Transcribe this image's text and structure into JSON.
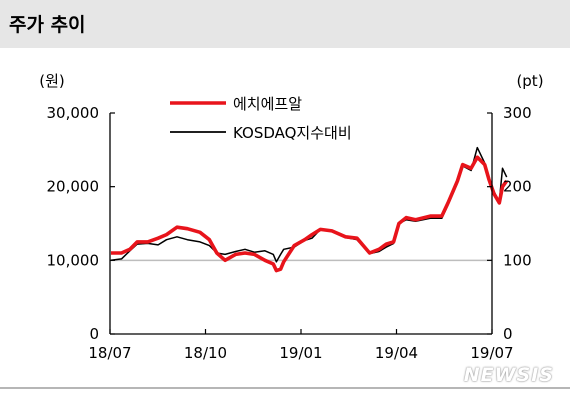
{
  "header": {
    "title": "주가 추이"
  },
  "watermark": "NEWSIS",
  "chart_data": {
    "type": "line",
    "title": "주가 추이",
    "left_axis": {
      "unit_label": "(원)",
      "ylim": [
        0,
        30000
      ],
      "ticks": [
        "0",
        "10,000",
        "20,000",
        "30,000"
      ],
      "tick_values": [
        0,
        10000,
        20000,
        30000
      ]
    },
    "right_axis": {
      "unit_label": "(pt)",
      "ylim": [
        0,
        300
      ],
      "ticks": [
        "0",
        "100",
        "200",
        "300"
      ],
      "tick_values": [
        0,
        100,
        200,
        300
      ]
    },
    "x_ticks": [
      "18/07",
      "18/10",
      "19/01",
      "19/04",
      "19/07"
    ],
    "x_range": [
      "2018-07",
      "2019-07"
    ],
    "reference_line": {
      "axis": "left",
      "value": 10000,
      "color": "#bdbdbd"
    },
    "legend_position": "top-center",
    "series": [
      {
        "name": "에치에프알",
        "axis": "left",
        "color": "#e8141b",
        "points": [
          [
            "2018-07-02",
            11000
          ],
          [
            "2018-07-12",
            11000
          ],
          [
            "2018-07-20",
            11500
          ],
          [
            "2018-07-27",
            12500
          ],
          [
            "2018-08-06",
            12500
          ],
          [
            "2018-08-16",
            13000
          ],
          [
            "2018-08-24",
            13500
          ],
          [
            "2018-09-03",
            14500
          ],
          [
            "2018-09-13",
            14300
          ],
          [
            "2018-09-25",
            13800
          ],
          [
            "2018-10-04",
            12800
          ],
          [
            "2018-10-11",
            11000
          ],
          [
            "2018-10-19",
            10000
          ],
          [
            "2018-10-29",
            10800
          ],
          [
            "2018-11-07",
            11000
          ],
          [
            "2018-11-16",
            10800
          ],
          [
            "2018-11-26",
            10000
          ],
          [
            "2018-12-04",
            9500
          ],
          [
            "2018-12-07",
            8600
          ],
          [
            "2018-12-11",
            8800
          ],
          [
            "2018-12-14",
            9800
          ],
          [
            "2018-12-24",
            12000
          ],
          [
            "2019-01-03",
            12800
          ],
          [
            "2019-01-10",
            13500
          ],
          [
            "2019-01-18",
            14200
          ],
          [
            "2019-01-29",
            14000
          ],
          [
            "2019-02-11",
            13200
          ],
          [
            "2019-02-22",
            13000
          ],
          [
            "2019-03-06",
            11000
          ],
          [
            "2019-03-15",
            11500
          ],
          [
            "2019-03-22",
            12200
          ],
          [
            "2019-03-29",
            12500
          ],
          [
            "2019-04-03",
            15000
          ],
          [
            "2019-04-10",
            15800
          ],
          [
            "2019-04-19",
            15500
          ],
          [
            "2019-05-03",
            16000
          ],
          [
            "2019-05-14",
            16000
          ],
          [
            "2019-05-20",
            17800
          ],
          [
            "2019-05-29",
            20800
          ],
          [
            "2019-06-03",
            23000
          ],
          [
            "2019-06-11",
            22500
          ],
          [
            "2019-06-17",
            24000
          ],
          [
            "2019-06-24",
            23000
          ],
          [
            "2019-06-28",
            21000
          ],
          [
            "2019-07-03",
            19000
          ],
          [
            "2019-07-08",
            17800
          ],
          [
            "2019-07-11",
            20000
          ],
          [
            "2019-07-15",
            20800
          ]
        ]
      },
      {
        "name": "KOSDAQ지수대비",
        "axis": "right",
        "color": "#000000",
        "points": [
          [
            "2018-07-02",
            100
          ],
          [
            "2018-07-12",
            102
          ],
          [
            "2018-07-20",
            113
          ],
          [
            "2018-07-27",
            122
          ],
          [
            "2018-08-06",
            123
          ],
          [
            "2018-08-16",
            121
          ],
          [
            "2018-08-24",
            128
          ],
          [
            "2018-09-03",
            132
          ],
          [
            "2018-09-13",
            128
          ],
          [
            "2018-09-25",
            125
          ],
          [
            "2018-10-04",
            120
          ],
          [
            "2018-10-11",
            110
          ],
          [
            "2018-10-19",
            108
          ],
          [
            "2018-10-29",
            112
          ],
          [
            "2018-11-07",
            115
          ],
          [
            "2018-11-16",
            111
          ],
          [
            "2018-11-26",
            113
          ],
          [
            "2018-12-04",
            108
          ],
          [
            "2018-12-07",
            98
          ],
          [
            "2018-12-11",
            108
          ],
          [
            "2018-12-14",
            115
          ],
          [
            "2018-12-24",
            118
          ],
          [
            "2019-01-03",
            127
          ],
          [
            "2019-01-10",
            130
          ],
          [
            "2019-01-18",
            142
          ],
          [
            "2019-01-29",
            140
          ],
          [
            "2019-02-11",
            131
          ],
          [
            "2019-02-22",
            128
          ],
          [
            "2019-03-06",
            109
          ],
          [
            "2019-03-15",
            112
          ],
          [
            "2019-03-22",
            118
          ],
          [
            "2019-03-29",
            123
          ],
          [
            "2019-04-03",
            150
          ],
          [
            "2019-04-10",
            155
          ],
          [
            "2019-04-19",
            153
          ],
          [
            "2019-05-03",
            157
          ],
          [
            "2019-05-14",
            157
          ],
          [
            "2019-05-20",
            175
          ],
          [
            "2019-05-29",
            205
          ],
          [
            "2019-06-03",
            228
          ],
          [
            "2019-06-11",
            222
          ],
          [
            "2019-06-17",
            253
          ],
          [
            "2019-06-24",
            232
          ],
          [
            "2019-06-28",
            212
          ],
          [
            "2019-07-03",
            193
          ],
          [
            "2019-07-08",
            180
          ],
          [
            "2019-07-11",
            225
          ],
          [
            "2019-07-15",
            213
          ]
        ]
      }
    ]
  }
}
